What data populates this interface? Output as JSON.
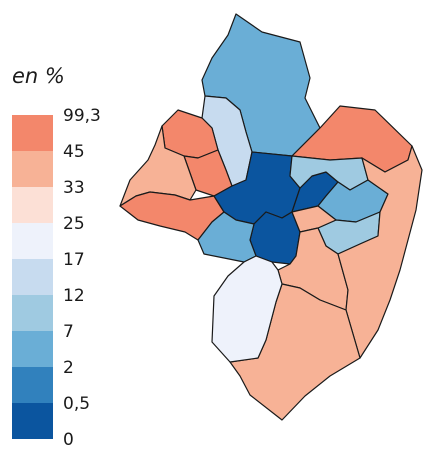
{
  "legend": {
    "title": "en %",
    "labels": [
      "99,3",
      "45",
      "33",
      "25",
      "17",
      "12",
      "7",
      "2",
      "0,5",
      "0"
    ],
    "classes": [
      {
        "color": "#f3876b"
      },
      {
        "color": "#f7b296"
      },
      {
        "color": "#fce0d6"
      },
      {
        "color": "#eef2fb"
      },
      {
        "color": "#c7dbef"
      },
      {
        "color": "#9fcae1"
      },
      {
        "color": "#6aaed6"
      },
      {
        "color": "#3181bd"
      },
      {
        "color": "#0b559f"
      }
    ]
  },
  "colors": {
    "outline": "#1a1a1a",
    "background": "#ffffff"
  }
}
